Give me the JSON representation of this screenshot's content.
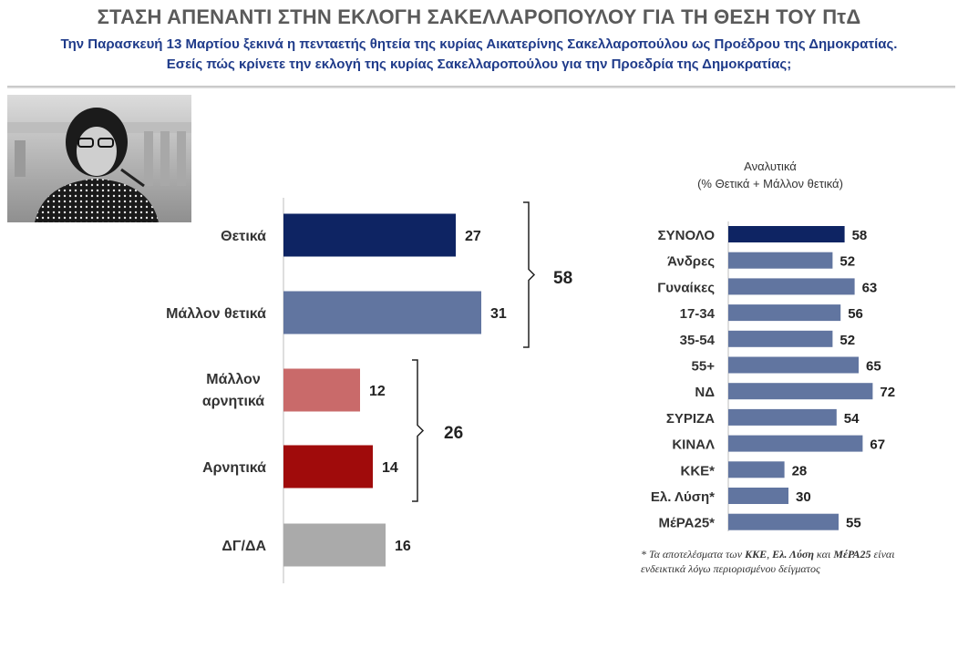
{
  "header": {
    "title": "ΣΤΑΣΗ ΑΠΕΝΑΝΤΙ ΣΤΗΝ ΕΚΛΟΓΗ ΣΑΚΕΛΛΑΡΟΠΟΥΛΟΥ ΓΙΑ ΤΗ ΘΕΣΗ ΤΟΥ ΠτΔ",
    "subtitle_line1": "Την Παρασκευή 13 Μαρτίου ξεκινά η πενταετής θητεία της κυρίας Αικατερίνης Σακελλαροπούλου ως Προέδρου της Δημοκρατίας.",
    "subtitle_line2": "Εσείς πώς κρίνετε την εκλογή της κυρίας Σακελλαροπούλου για την Προεδρία της Δημοκρατίας;"
  },
  "detail_title": {
    "line1": "Αναλυτικά",
    "line2": "(% Θετικά + Μάλλον θετικά)"
  },
  "footnote": {
    "prefix": "* Τα αποτελέσματα των ",
    "b1": "ΚΚΕ",
    "sep1": ", ",
    "b2": "Ελ. Λύση",
    "mid": " και ",
    "b3": "ΜέΡΑ25",
    "suffix": " είναι ενδεικτικά λόγω περιορισμένου δείγματος"
  },
  "colors": {
    "positive": "#0e2463",
    "somewhat_positive": "#6175a0",
    "somewhat_negative": "#c96a6a",
    "negative": "#a00b0b",
    "dk_na": "#aaaaaa",
    "total": "#0e2463",
    "subgroup": "#6175a0"
  },
  "chart_data": [
    {
      "type": "bar",
      "orientation": "horizontal",
      "categories": [
        "Θετικά",
        "Μάλλον θετικά",
        "Μάλλον αρνητικά",
        "Αρνητικά",
        "ΔΓ/ΔΑ"
      ],
      "values": [
        27,
        31,
        12,
        14,
        16
      ],
      "groups": [
        {
          "members": [
            "Θετικά",
            "Μάλλον θετικά"
          ],
          "total": 58
        },
        {
          "members": [
            "Μάλλον αρνητικά",
            "Αρνητικά"
          ],
          "total": 26
        }
      ]
    },
    {
      "type": "bar",
      "orientation": "horizontal",
      "title": "Αναλυτικά (% Θετικά + Μάλλον θετικά)",
      "categories": [
        "ΣΥΝΟΛΟ",
        "Άνδρες",
        "Γυναίκες",
        "17-34",
        "35-54",
        "55+",
        "ΝΔ",
        "ΣΥΡΙΖΑ",
        "ΚΙΝΑΛ",
        "ΚΚΕ*",
        "Ελ. Λύση*",
        "ΜέΡΑ25*"
      ],
      "values": [
        58,
        52,
        63,
        56,
        52,
        65,
        72,
        54,
        67,
        28,
        30,
        55
      ]
    }
  ]
}
